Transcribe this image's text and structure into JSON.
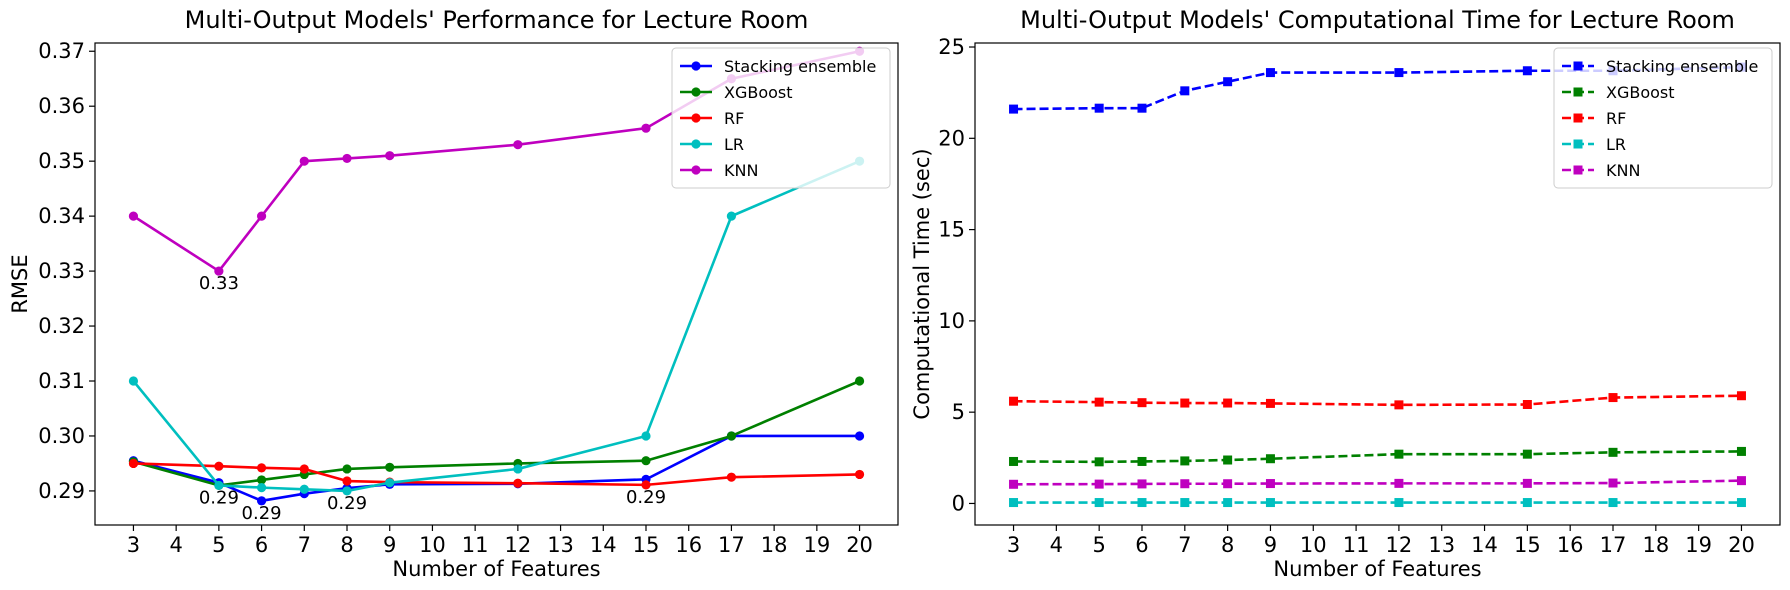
{
  "chart_data": [
    {
      "type": "line",
      "title": "Multi-Output Models' Performance for Lecture Room",
      "xlabel": "Number of Features",
      "ylabel": "RMSE",
      "xlim": [
        2.1,
        20.9
      ],
      "ylim": [
        0.2838,
        0.3715
      ],
      "xticks": [
        3,
        4,
        5,
        6,
        7,
        8,
        9,
        10,
        11,
        12,
        13,
        14,
        15,
        16,
        17,
        18,
        19,
        20
      ],
      "xtick_labels": [
        "3",
        "4",
        "5",
        "6",
        "7",
        "8",
        "9",
        "10",
        "11",
        "12",
        "13",
        "14",
        "15",
        "16",
        "17",
        "18",
        "19",
        "20"
      ],
      "yticks": [
        0.29,
        0.3,
        0.31,
        0.32,
        0.33,
        0.34,
        0.35,
        0.36,
        0.37
      ],
      "ytick_labels": [
        "0.29",
        "0.30",
        "0.31",
        "0.32",
        "0.33",
        "0.34",
        "0.35",
        "0.36",
        "0.37"
      ],
      "marker": "circle",
      "dashed": false,
      "legend_position": "upper-right",
      "grid": false,
      "x": [
        3,
        5,
        6,
        7,
        8,
        9,
        12,
        15,
        17,
        20
      ],
      "series": [
        {
          "name": "Stacking ensemble",
          "color": "#0000ff",
          "values": [
            0.2955,
            0.2915,
            0.2882,
            0.2895,
            0.2905,
            0.2912,
            0.2913,
            0.2921,
            0.3,
            0.3
          ]
        },
        {
          "name": "XGBoost",
          "color": "#008000",
          "values": [
            0.2953,
            0.291,
            0.292,
            0.293,
            0.294,
            0.2943,
            0.295,
            0.2955,
            0.3,
            0.31
          ]
        },
        {
          "name": "RF",
          "color": "#ff0000",
          "values": [
            0.295,
            0.2945,
            0.2942,
            0.294,
            0.2918,
            0.2916,
            0.2914,
            0.2911,
            0.2925,
            0.293
          ]
        },
        {
          "name": "LR",
          "color": "#00bfbf",
          "values": [
            0.31,
            0.291,
            0.2906,
            0.2903,
            0.29,
            0.2915,
            0.294,
            0.3,
            0.34,
            0.35
          ]
        },
        {
          "name": "KNN",
          "color": "#bf00bf",
          "values": [
            0.34,
            0.33,
            0.34,
            0.35,
            0.3505,
            0.351,
            0.353,
            0.356,
            0.365,
            0.37
          ]
        }
      ],
      "annotations": [
        {
          "text": "0.33",
          "x": 5,
          "y": 0.33,
          "color": "#bf00bf"
        },
        {
          "text": "0.29",
          "x": 5,
          "y": 0.291,
          "color": "#008000"
        },
        {
          "text": "0.29",
          "x": 6,
          "y": 0.2882,
          "color": "#0000ff"
        },
        {
          "text": "0.29",
          "x": 8,
          "y": 0.29,
          "color": "#00bfbf"
        },
        {
          "text": "0.29",
          "x": 15,
          "y": 0.2911,
          "color": "#ff0000"
        }
      ]
    },
    {
      "type": "line",
      "title": "Multi-Output Models' Computational Time for Lecture Room",
      "xlabel": "Number of Features",
      "ylabel": "Computational Time (sec)",
      "xlim": [
        2.1,
        20.9
      ],
      "ylim": [
        -1.18,
        25.22
      ],
      "xticks": [
        3,
        4,
        5,
        6,
        7,
        8,
        9,
        10,
        11,
        12,
        13,
        14,
        15,
        16,
        17,
        18,
        19,
        20
      ],
      "xtick_labels": [
        "3",
        "4",
        "5",
        "6",
        "7",
        "8",
        "9",
        "10",
        "11",
        "12",
        "13",
        "14",
        "15",
        "16",
        "17",
        "18",
        "19",
        "20"
      ],
      "yticks": [
        0,
        5,
        10,
        15,
        20,
        25
      ],
      "ytick_labels": [
        "0",
        "5",
        "10",
        "15",
        "20",
        "25"
      ],
      "marker": "square",
      "dashed": true,
      "legend_position": "upper-right",
      "grid": false,
      "x": [
        3,
        5,
        6,
        7,
        8,
        9,
        12,
        15,
        17,
        20
      ],
      "series": [
        {
          "name": "Stacking ensemble",
          "color": "#0000ff",
          "values": [
            21.6,
            21.65,
            21.65,
            22.6,
            23.1,
            23.6,
            23.6,
            23.7,
            23.7,
            23.9
          ]
        },
        {
          "name": "XGBoost",
          "color": "#008000",
          "values": [
            2.3,
            2.28,
            2.3,
            2.33,
            2.38,
            2.45,
            2.7,
            2.7,
            2.8,
            2.85
          ]
        },
        {
          "name": "RF",
          "color": "#ff0000",
          "values": [
            5.6,
            5.55,
            5.52,
            5.5,
            5.5,
            5.48,
            5.4,
            5.42,
            5.8,
            5.9
          ]
        },
        {
          "name": "LR",
          "color": "#00bfbf",
          "values": [
            0.05,
            0.05,
            0.05,
            0.05,
            0.05,
            0.05,
            0.05,
            0.05,
            0.05,
            0.05
          ]
        },
        {
          "name": "KNN",
          "color": "#bf00bf",
          "values": [
            1.05,
            1.06,
            1.07,
            1.08,
            1.08,
            1.09,
            1.1,
            1.1,
            1.12,
            1.25
          ]
        }
      ],
      "annotations": []
    }
  ]
}
